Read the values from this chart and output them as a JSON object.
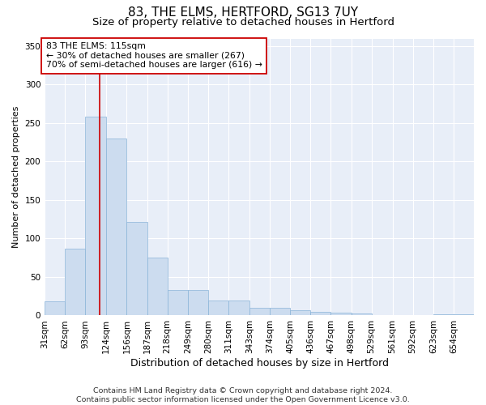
{
  "title": "83, THE ELMS, HERTFORD, SG13 7UY",
  "subtitle": "Size of property relative to detached houses in Hertford",
  "xlabel": "Distribution of detached houses by size in Hertford",
  "ylabel": "Number of detached properties",
  "bar_color": "#ccdcef",
  "bar_edge_color": "#8ab4d8",
  "vline_color": "#cc0000",
  "vline_x": 115,
  "annotation_text": "83 THE ELMS: 115sqm\n← 30% of detached houses are smaller (267)\n70% of semi-detached houses are larger (616) →",
  "annotation_box_color": "#ffffff",
  "annotation_box_edgecolor": "#cc0000",
  "bins": [
    31,
    62,
    93,
    124,
    156,
    187,
    218,
    249,
    280,
    311,
    343,
    374,
    405,
    436,
    467,
    498,
    529,
    561,
    592,
    623,
    654,
    685
  ],
  "bar_heights": [
    18,
    87,
    258,
    230,
    122,
    75,
    33,
    33,
    19,
    19,
    10,
    10,
    7,
    5,
    4,
    3,
    1,
    0,
    0,
    2,
    2
  ],
  "ylim": [
    0,
    360
  ],
  "yticks": [
    0,
    50,
    100,
    150,
    200,
    250,
    300,
    350
  ],
  "xlim": [
    31,
    685
  ],
  "background_color": "#e8eef8",
  "footer_text": "Contains HM Land Registry data © Crown copyright and database right 2024.\nContains public sector information licensed under the Open Government Licence v3.0.",
  "title_fontsize": 11,
  "subtitle_fontsize": 9.5,
  "xlabel_fontsize": 9,
  "ylabel_fontsize": 8,
  "tick_fontsize": 7.5,
  "footer_fontsize": 6.8,
  "annot_fontsize": 7.8
}
